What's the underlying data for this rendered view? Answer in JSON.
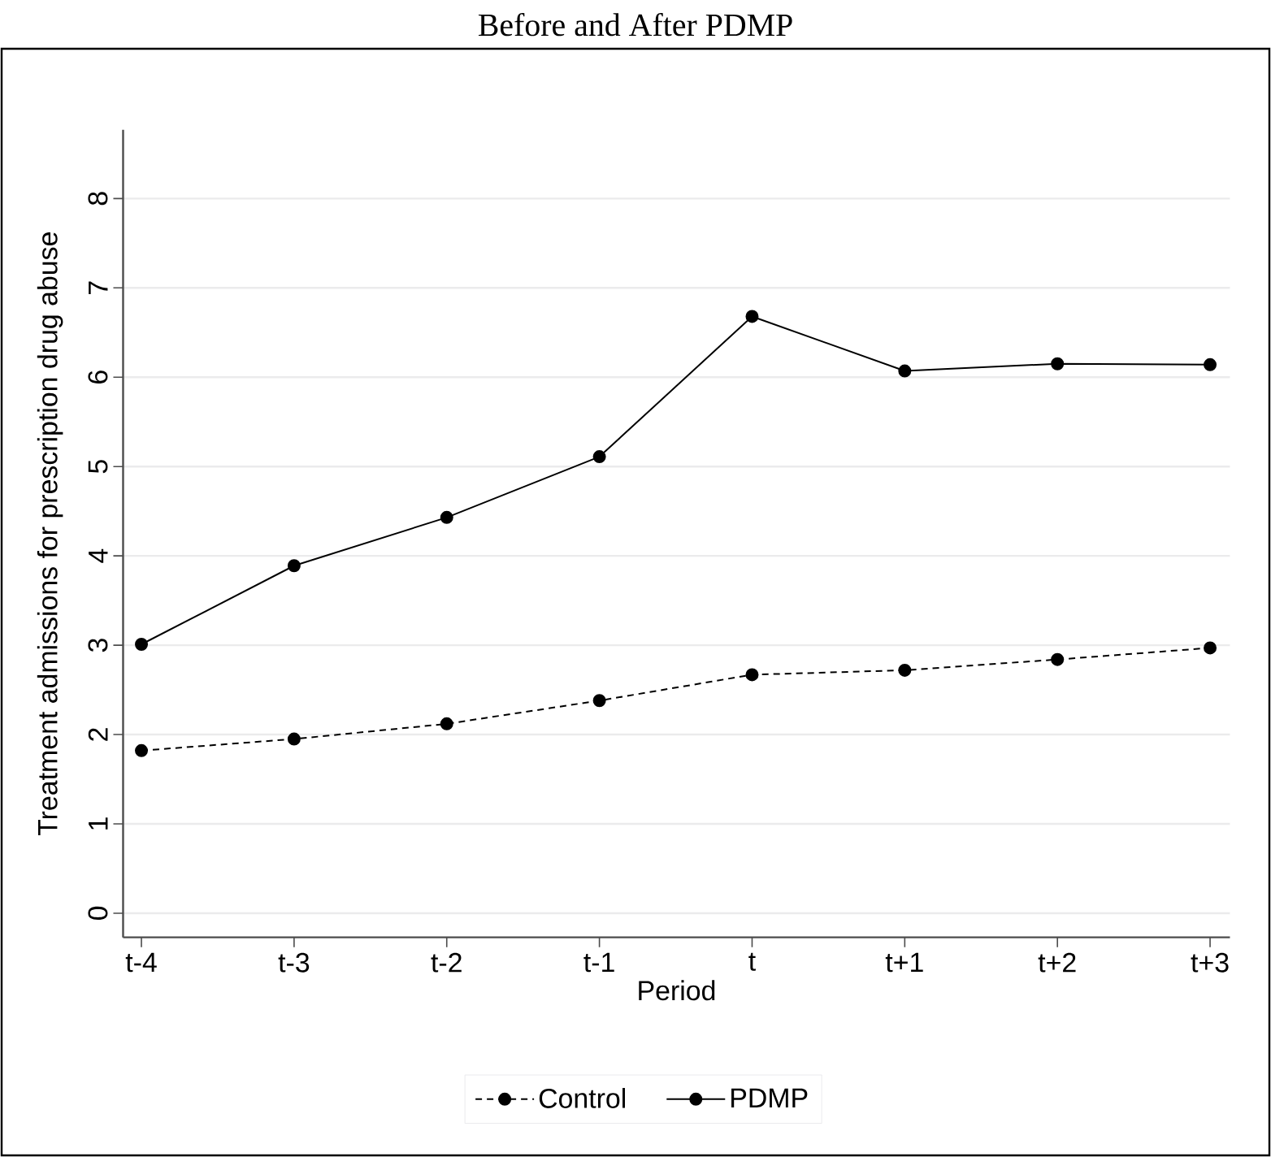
{
  "chart_data": {
    "type": "line",
    "title": "Before and After PDMP",
    "xlabel": "Period",
    "ylabel": "Treatment admissions for prescription drug abuse",
    "categories": [
      "t-4",
      "t-3",
      "t-2",
      "t-1",
      "t",
      "t+1",
      "t+2",
      "t+3"
    ],
    "series": [
      {
        "name": "Control",
        "color": "#000000",
        "line_style": "dashed",
        "values": [
          1.82,
          1.95,
          2.12,
          2.38,
          2.67,
          2.72,
          2.84,
          2.97
        ]
      },
      {
        "name": "PDMP",
        "color": "#000000",
        "line_style": "solid",
        "values": [
          3.01,
          3.89,
          4.43,
          5.11,
          6.68,
          6.07,
          6.15,
          6.14
        ]
      }
    ],
    "ylim": [
      -0.27,
      8.77
    ],
    "yticks": [
      0,
      1,
      2,
      3,
      4,
      5,
      6,
      7,
      8
    ],
    "grid": "y",
    "legend": "bottom",
    "marker": "circle"
  }
}
